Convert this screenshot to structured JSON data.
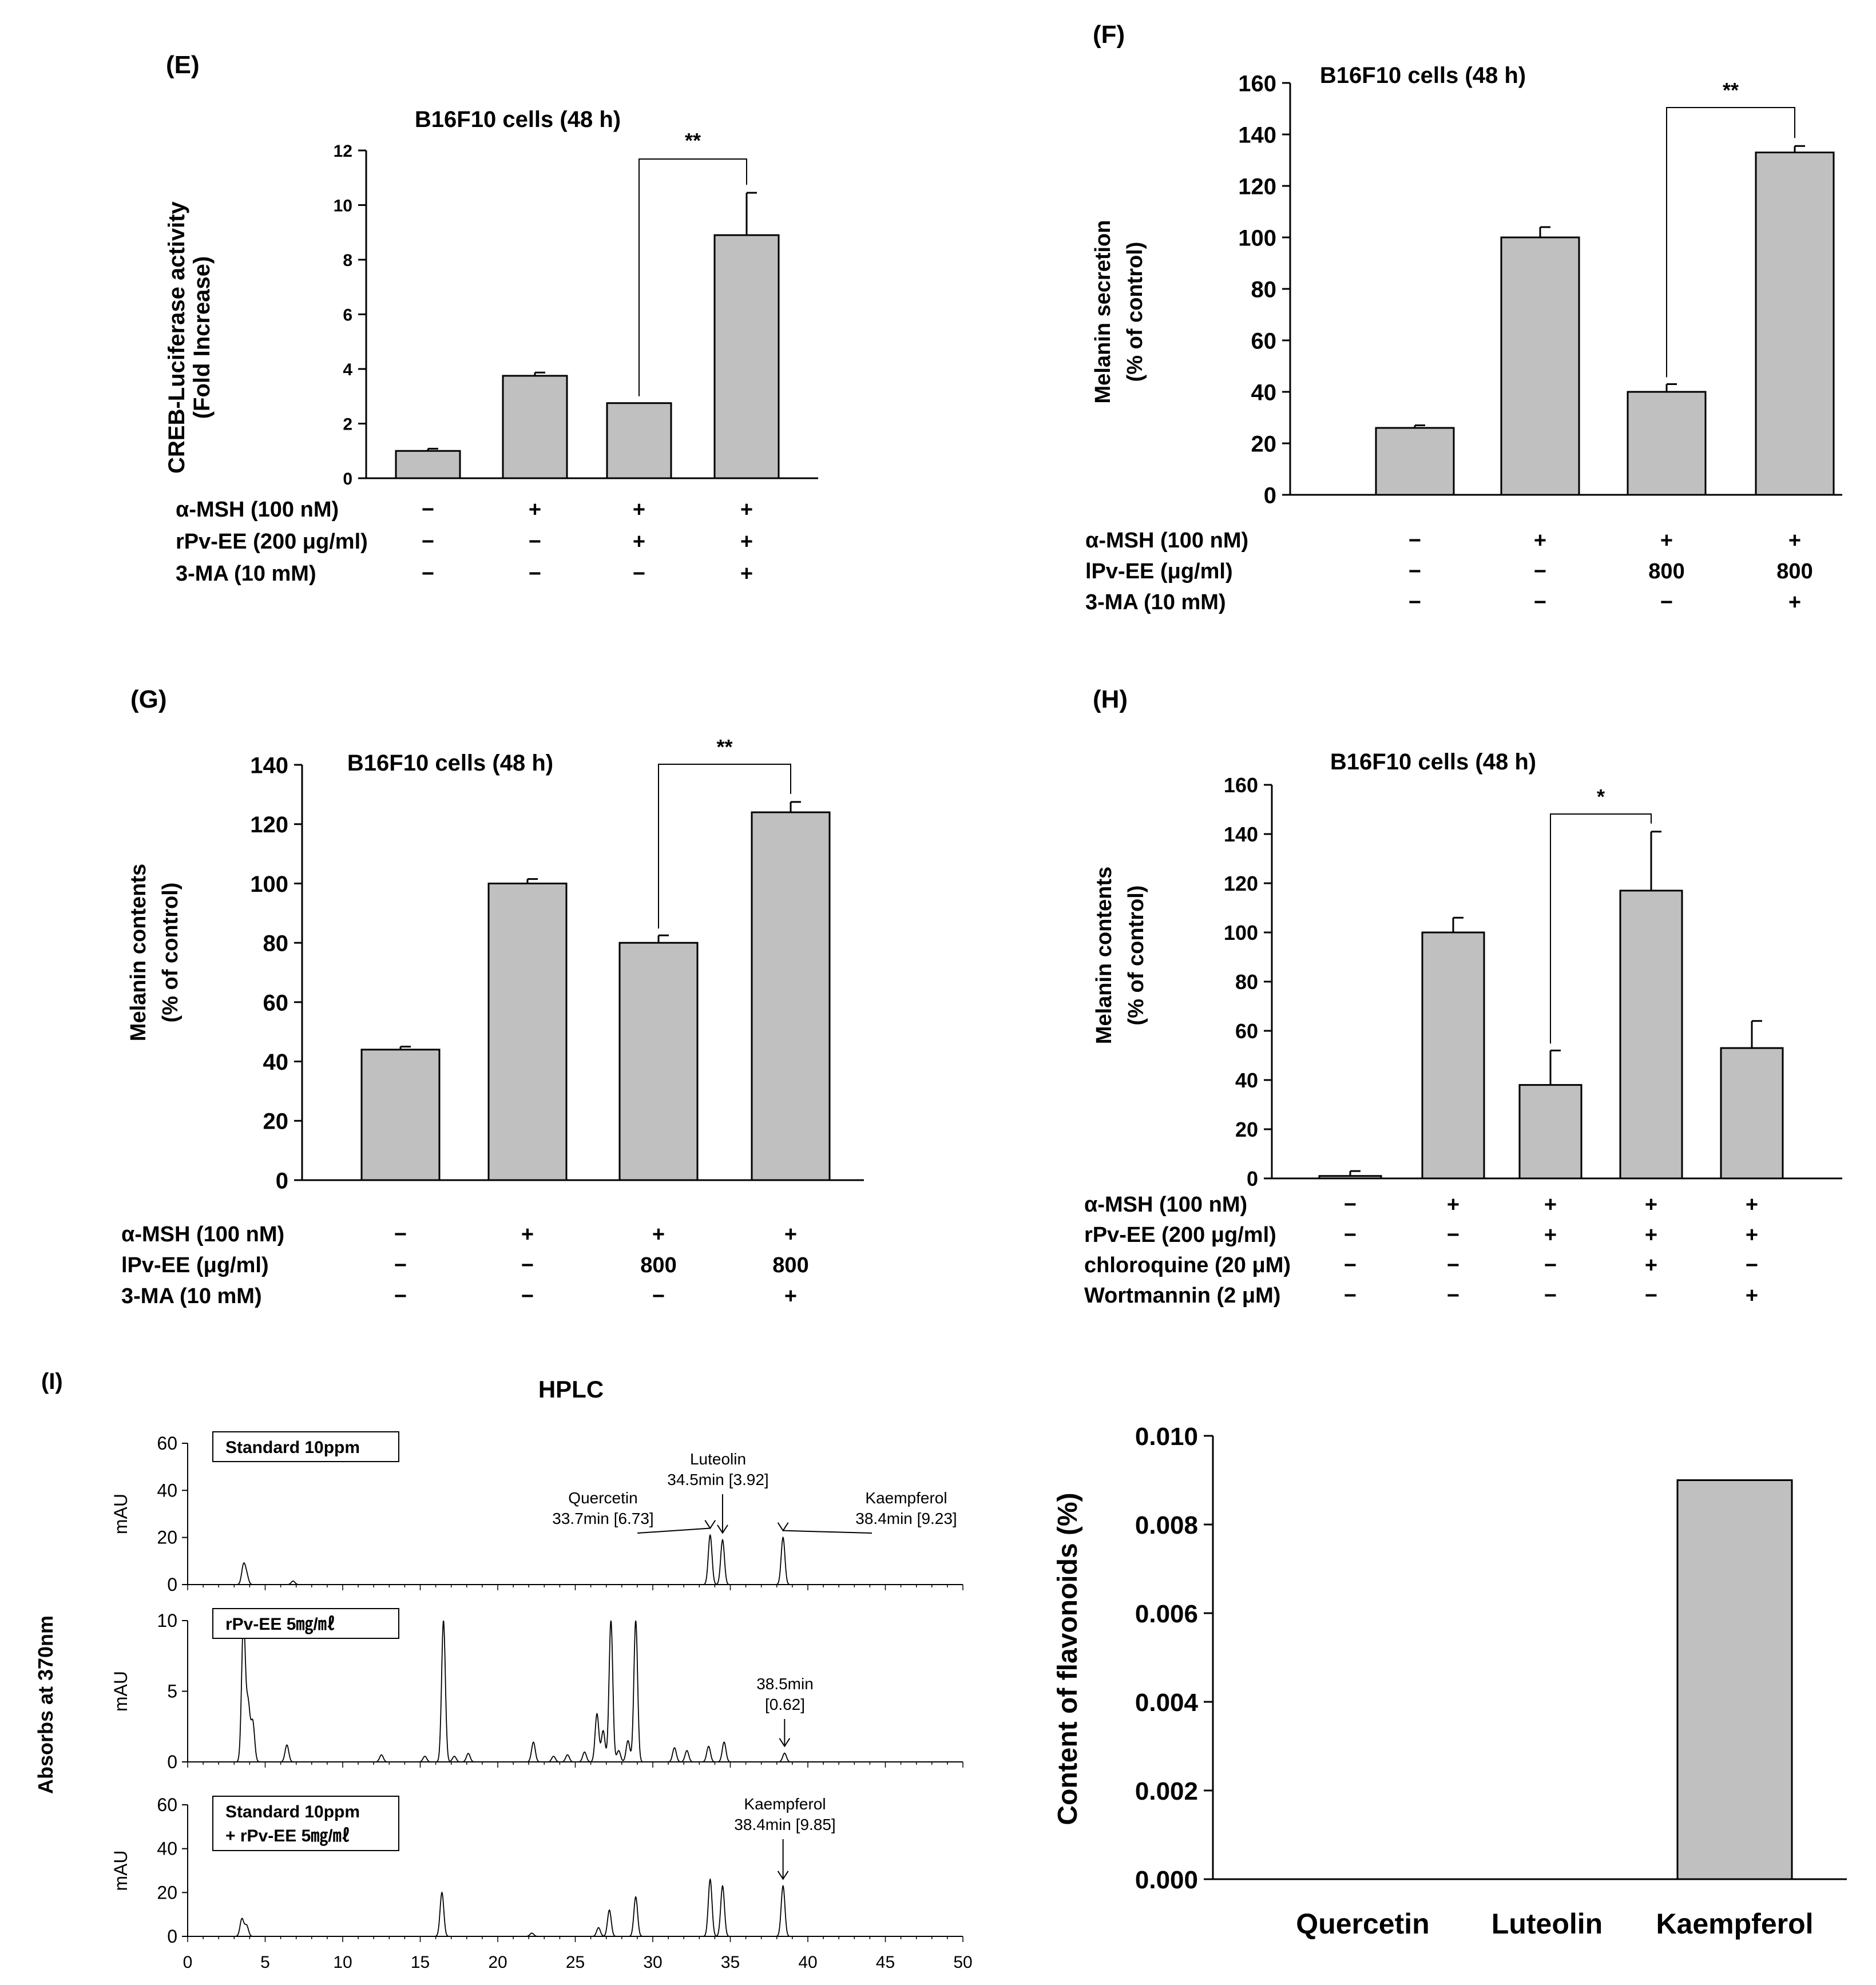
{
  "chart_data": [
    {
      "id": "E",
      "panel_label": "(E)",
      "type": "bar",
      "title": "B16F10 cells (48 h)",
      "ylabel_lines": [
        "CREB-Luciferase activity",
        "(Fold Increase)"
      ],
      "ylim": [
        0,
        12
      ],
      "yticks": [
        0,
        2,
        4,
        6,
        8,
        10,
        12
      ],
      "values": [
        1.0,
        3.75,
        2.75,
        8.9
      ],
      "errors": [
        0.08,
        0.12,
        0.0,
        1.55
      ],
      "significance": {
        "from": 2,
        "to": 3,
        "label": "**"
      },
      "treatments": [
        {
          "label": "α-MSH (100 nM)",
          "signs": [
            "−",
            "+",
            "+",
            "+"
          ]
        },
        {
          "label": "rPv-EE (200 μg/ml)",
          "signs": [
            "−",
            "−",
            "+",
            "+"
          ]
        },
        {
          "label": "3-MA (10 mM)",
          "signs": [
            "−",
            "−",
            "−",
            "+"
          ]
        }
      ]
    },
    {
      "id": "F",
      "panel_label": "(F)",
      "type": "bar",
      "title": "B16F10 cells (48 h)",
      "ylabel_lines": [
        "Melanin secretion",
        "(% of control)"
      ],
      "ylim": [
        0,
        160
      ],
      "yticks": [
        0,
        20,
        40,
        60,
        80,
        100,
        120,
        140,
        160
      ],
      "values": [
        26,
        100,
        40,
        133
      ],
      "errors": [
        1,
        4,
        3,
        2.5
      ],
      "significance": {
        "from": 2,
        "to": 3,
        "label": "**"
      },
      "treatments": [
        {
          "label": "α-MSH (100 nM)",
          "signs": [
            "−",
            "+",
            "+",
            "+"
          ]
        },
        {
          "label": "lPv-EE (μg/ml)",
          "signs": [
            "−",
            "−",
            "800",
            "800"
          ]
        },
        {
          "label": "3-MA (10 mM)",
          "signs": [
            "−",
            "−",
            "−",
            "+"
          ]
        }
      ]
    },
    {
      "id": "G",
      "panel_label": "(G)",
      "type": "bar",
      "title": "B16F10 cells (48 h)",
      "ylabel_lines": [
        "Melanin contents",
        "(% of control)"
      ],
      "ylim": [
        0,
        140
      ],
      "yticks": [
        0,
        20,
        40,
        60,
        80,
        100,
        120,
        140
      ],
      "values": [
        44,
        100,
        80,
        124
      ],
      "errors": [
        1,
        1.5,
        2.5,
        3.5
      ],
      "significance": {
        "from": 2,
        "to": 3,
        "label": "**"
      },
      "treatments": [
        {
          "label": "α-MSH (100 nM)",
          "signs": [
            "−",
            "+",
            "+",
            "+"
          ]
        },
        {
          "label": "lPv-EE (μg/ml)",
          "signs": [
            "−",
            "−",
            "800",
            "800"
          ]
        },
        {
          "label": "3-MA (10 mM)",
          "signs": [
            "−",
            "−",
            "−",
            "+"
          ]
        }
      ]
    },
    {
      "id": "H",
      "panel_label": "(H)",
      "type": "bar",
      "title": "B16F10 cells (48 h)",
      "ylabel_lines": [
        "Melanin contents",
        "(% of control)"
      ],
      "ylim": [
        0,
        160
      ],
      "yticks": [
        0,
        20,
        40,
        60,
        80,
        100,
        120,
        140,
        160
      ],
      "values": [
        1,
        100,
        38,
        117,
        53
      ],
      "errors": [
        2,
        6,
        14,
        24,
        11
      ],
      "significance": {
        "from": 2,
        "to": 3,
        "label": "*"
      },
      "treatments": [
        {
          "label": "α-MSH (100 nM)",
          "signs": [
            "−",
            "+",
            "+",
            "+",
            "+"
          ]
        },
        {
          "label": "rPv-EE (200 μg/ml)",
          "signs": [
            "−",
            "−",
            "+",
            "+",
            "+"
          ]
        },
        {
          "label": "chloroquine (20 μM)",
          "signs": [
            "−",
            "−",
            "−",
            "+",
            "−"
          ]
        },
        {
          "label": "Wortmannin (2 μM)",
          "signs": [
            "−",
            "−",
            "−",
            "−",
            "+"
          ]
        }
      ]
    },
    {
      "id": "I",
      "panel_label": "(I)",
      "type": "line",
      "title": "HPLC",
      "ylabel": "Absorbs at 370nm",
      "xlim": [
        0,
        50
      ],
      "xticks": [
        0,
        5,
        10,
        15,
        20,
        25,
        30,
        35,
        40,
        45,
        50
      ],
      "traces": [
        {
          "legend_lines": [
            "Standard 10ppm"
          ],
          "y_unit": "mAU",
          "ylim": [
            0,
            60
          ],
          "yticks": [
            0,
            20,
            40,
            60
          ],
          "peaks": [
            [
              3.6,
              8
            ],
            [
              3.8,
              4
            ],
            [
              6.8,
              1.5
            ],
            [
              33.7,
              21
            ],
            [
              34.5,
              19
            ],
            [
              38.4,
              20
            ]
          ],
          "annotations": [
            {
              "lines": [
                "Luteolin",
                "34.5min [3.92]"
              ],
              "target_rt": 34.5
            },
            {
              "lines": [
                "Quercetin",
                "33.7min [6.73]"
              ],
              "target_rt": 33.7
            },
            {
              "lines": [
                "Kaempferol",
                "38.4min [9.23]"
              ],
              "target_rt": 38.4
            }
          ]
        },
        {
          "legend_lines": [
            "rPv-EE 5㎎/㎖"
          ],
          "y_unit": "mAU",
          "ylim": [
            0,
            10
          ],
          "yticks": [
            0,
            5,
            10
          ],
          "peaks": [
            [
              3.6,
              10
            ],
            [
              3.9,
              4
            ],
            [
              4.2,
              2.8
            ],
            [
              6.4,
              1.2
            ],
            [
              12.5,
              0.5
            ],
            [
              15.3,
              0.4
            ],
            [
              16.5,
              10
            ],
            [
              17.2,
              0.4
            ],
            [
              18.1,
              0.6
            ],
            [
              22.3,
              1.4
            ],
            [
              23.6,
              0.4
            ],
            [
              24.5,
              0.5
            ],
            [
              25.6,
              0.7
            ],
            [
              26.4,
              3.4
            ],
            [
              26.8,
              2.2
            ],
            [
              27.3,
              10
            ],
            [
              27.8,
              0.8
            ],
            [
              28.4,
              1.5
            ],
            [
              28.9,
              10
            ],
            [
              31.4,
              1.0
            ],
            [
              32.2,
              0.8
            ],
            [
              33.6,
              1.1
            ],
            [
              34.6,
              1.4
            ],
            [
              38.5,
              0.62
            ]
          ],
          "annotations": [
            {
              "lines": [
                "38.5min",
                "[0.62]"
              ],
              "target_rt": 38.5
            }
          ]
        },
        {
          "legend_lines": [
            "Standard 10ppm",
            "+ rPv-EE 5㎎/㎖"
          ],
          "y_unit": "mAU",
          "ylim": [
            0,
            60
          ],
          "yticks": [
            0,
            20,
            40,
            60
          ],
          "peaks": [
            [
              3.5,
              8
            ],
            [
              3.8,
              5
            ],
            [
              16.4,
              20
            ],
            [
              22.2,
              1.5
            ],
            [
              26.5,
              4
            ],
            [
              27.2,
              12
            ],
            [
              28.9,
              18
            ],
            [
              33.7,
              26
            ],
            [
              34.5,
              23
            ],
            [
              38.4,
              23
            ]
          ],
          "annotations": [
            {
              "lines": [
                "Kaempferol",
                "38.4min [9.85]"
              ],
              "target_rt": 38.4
            }
          ]
        }
      ]
    },
    {
      "id": "J",
      "type": "bar",
      "categories": [
        "Quercetin",
        "Luteolin",
        "Kaempferol"
      ],
      "values": [
        0,
        0,
        0.009
      ],
      "ylabel": "Content of flavonoids (%)",
      "ylim": [
        0,
        0.01
      ],
      "yticks": [
        "0.000",
        "0.002",
        "0.004",
        "0.006",
        "0.008",
        "0.010"
      ]
    }
  ]
}
